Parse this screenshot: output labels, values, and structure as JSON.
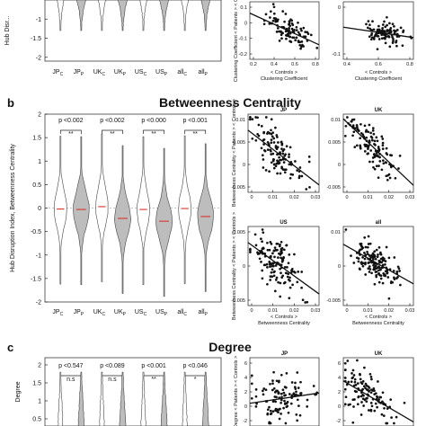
{
  "panel_labels": {
    "b": "b",
    "c": "c"
  },
  "titles": {
    "b": "Betweenness Centrality",
    "c": "Degree"
  },
  "violin_axis_labels": {
    "a": "Hub Disr...",
    "b": "Hub Disruption Index, Betweenness Centrality",
    "c": "Degree"
  },
  "scatter_axis_labels": {
    "a_y": "Clustering Coefficient < Patients > < Controls >",
    "a_x_sub": "< Controls >",
    "a_x": "Clustering Coefficient",
    "b_y": "Betweenness Centrality < Patients > < Controls >",
    "b_x_sub": "< Controls >",
    "b_x": "Betweenness Centrality",
    "c_y": "Degree < Patients > < Controls >"
  },
  "violin_groups": [
    "JP_C",
    "JP_P",
    "UK_C",
    "UK_P",
    "US_C",
    "US_P",
    "all_C",
    "all_P"
  ],
  "violin_group_labels": [
    "JPc",
    "JPp",
    "UKc",
    "UKp",
    "USc",
    "USp",
    "allc",
    "allp"
  ],
  "chart_data": [
    {
      "type": "violin",
      "panel": "a",
      "ylabel": "Hub Disr...",
      "ylim": [
        -2,
        0
      ],
      "yticks": [
        -1,
        -1.5,
        -2
      ],
      "categories": [
        "JPc",
        "JPp",
        "UKc",
        "UKp",
        "USc",
        "USp",
        "allc",
        "allp"
      ]
    },
    {
      "type": "scatter",
      "panel": "a-left",
      "xlabel": "Clustering Coefficient",
      "xticks": [
        0.2,
        0.4,
        0.6,
        0.8
      ],
      "yticks": [
        0.1,
        0,
        -0.1,
        -0.2
      ],
      "trend": {
        "x": [
          0.2,
          0.8
        ],
        "y": [
          0.05,
          -0.12
        ]
      }
    },
    {
      "type": "scatter",
      "panel": "a-right",
      "xlabel": "Clustering Coefficient",
      "xticks": [
        0.4,
        0.6,
        0.8
      ],
      "yticks": [
        0,
        -0.1
      ]
    },
    {
      "type": "violin",
      "panel": "b",
      "title": "Betweenness Centrality",
      "ylabel": "Hub Disruption Index, Betweenness Centrality",
      "ylim": [
        -2,
        2
      ],
      "yticks": [
        2,
        1.5,
        1,
        0.5,
        0,
        -0.5,
        -1,
        -1.5,
        -2
      ],
      "categories": [
        "JPc",
        "JPp",
        "UKc",
        "UKp",
        "USc",
        "USp",
        "allc",
        "allp"
      ],
      "p_values": [
        "p <0.002",
        "p <0.002",
        "p <0.000",
        "p <0.001"
      ],
      "significance": [
        "**",
        "**",
        "**",
        "**"
      ],
      "medians": [
        -0.02,
        -0.03,
        0.03,
        -0.22,
        -0.03,
        -0.28,
        -0.01,
        -0.18
      ]
    },
    {
      "type": "scatter",
      "panel": "b-JP",
      "title": "JP",
      "xticks": [
        0,
        0.01,
        0.02,
        0.03
      ],
      "yticks": [
        0.01,
        0.005,
        0,
        -0.005
      ]
    },
    {
      "type": "scatter",
      "panel": "b-UK",
      "title": "UK",
      "xticks": [
        0,
        0.01,
        0.02,
        0.03
      ],
      "yticks": [
        0.01,
        0.005,
        0,
        -0.005
      ]
    },
    {
      "type": "scatter",
      "panel": "b-US",
      "title": "US",
      "xlabel": "Betweenness Centrality",
      "xticks": [
        0,
        0.01,
        0.02,
        0.03
      ],
      "yticks": [
        0.005,
        0,
        -0.005
      ]
    },
    {
      "type": "scatter",
      "panel": "b-all",
      "title": "all",
      "xlabel": "Betweenness Centrality",
      "xticks": [
        0,
        0.01,
        0.02,
        0.03
      ],
      "yticks": [
        0.01,
        0,
        -0.005
      ]
    },
    {
      "type": "violin",
      "panel": "c",
      "title": "Degree",
      "ylabel": "Degree",
      "yticks": [
        2,
        1.5,
        1,
        0.5
      ],
      "categories": [
        "JPc",
        "JPp",
        "UKc",
        "UKp",
        "USc",
        "USp",
        "allc",
        "allp"
      ],
      "p_values": [
        "p <0.547",
        "p <0.089",
        "p <0.001",
        "p <0.046"
      ],
      "significance": [
        "n.s",
        "n.s",
        "**",
        "*"
      ]
    },
    {
      "type": "scatter",
      "panel": "c-JP",
      "title": "JP",
      "yticks": [
        6,
        4,
        2,
        0,
        -2
      ]
    },
    {
      "type": "scatter",
      "panel": "c-UK",
      "title": "UK",
      "yticks": [
        6,
        4,
        2,
        0,
        -2
      ]
    }
  ]
}
